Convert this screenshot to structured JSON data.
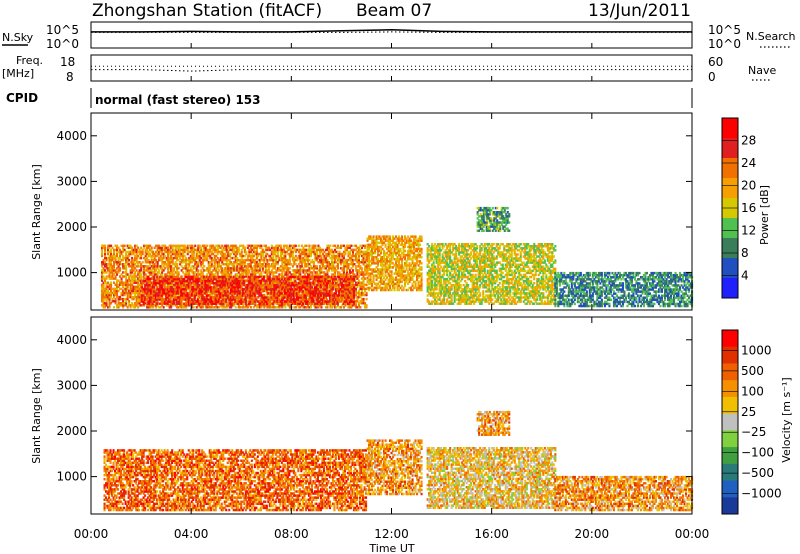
{
  "header": {
    "station": "Zhongshan Station (fitACF)",
    "beam": "Beam 07",
    "date": "13/Jun/2011"
  },
  "side_labels": {
    "nsky": "N.Sky",
    "freq": "Freq.",
    "freq_unit": "[MHz]",
    "cpid": "CPID",
    "nsearch": "N.Search",
    "nave": "Nave",
    "cpid_value": "normal (fast stereo) 153"
  },
  "small_panel_ticks": {
    "noise_left": [
      "10^5",
      "10^0"
    ],
    "noise_right": [
      "10^5",
      "10^0"
    ],
    "freq_left": [
      "18",
      "8"
    ],
    "nave_right": [
      "60",
      "0"
    ]
  },
  "chart_data": [
    {
      "type": "line",
      "title": "",
      "series": [
        {
          "name": "N.Sky",
          "values": [
            3.1,
            3.1,
            3.2,
            3.1,
            3.1,
            3.3,
            3.5,
            3.2,
            3.1,
            3.1,
            3.1,
            3.1
          ]
        },
        {
          "name": "N.Search",
          "values": [
            3.0,
            3.0,
            3.0,
            3.0,
            3.0,
            3.0,
            3.1,
            3.0,
            3.0,
            3.0,
            3.0,
            3.0
          ]
        }
      ],
      "x": [
        "00:00",
        "02:00",
        "04:00",
        "06:00",
        "08:00",
        "10:00",
        "12:00",
        "14:00",
        "16:00",
        "18:00",
        "20:00",
        "22:00"
      ],
      "ylim_labels": [
        "10^0",
        "10^5"
      ]
    },
    {
      "type": "line",
      "title": "",
      "series": [
        {
          "name": "Freq.",
          "values": [
            12.4,
            12.4,
            11.8,
            12.4,
            12.4,
            12.4,
            12.4,
            12.4,
            12.4,
            12.4,
            12.4,
            12.4
          ]
        },
        {
          "name": "Nave",
          "values": [
            34,
            34,
            34,
            34,
            34,
            34,
            34,
            34,
            34,
            34,
            34,
            34
          ]
        }
      ],
      "x": [
        "00:00",
        "02:00",
        "04:00",
        "06:00",
        "08:00",
        "10:00",
        "12:00",
        "14:00",
        "16:00",
        "18:00",
        "20:00",
        "22:00"
      ],
      "ylim": [
        8,
        18
      ],
      "ylim_right": [
        0,
        60
      ]
    },
    {
      "type": "heatmap",
      "ylabel": "Slant Range [km]",
      "yticks": [
        "1000",
        "2000",
        "3000",
        "4000"
      ],
      "ylim": [
        180,
        4500
      ],
      "colorbar_label": "Power [dB]",
      "colorbar_ticks": [
        "4",
        "8",
        "12",
        "16",
        "20",
        "24",
        "28"
      ],
      "colorbar_colors": [
        "#2020ff",
        "#2050c0",
        "#3a7d5a",
        "#50c050",
        "#d6c800",
        "#f5a000",
        "#f07000",
        "#e02020",
        "#ff0000"
      ],
      "regions": [
        {
          "start": 0.4,
          "end": 11.0,
          "min_km": 220,
          "max_km": 1600,
          "value": 22
        },
        {
          "start": 2.0,
          "end": 10.5,
          "min_km": 300,
          "max_km": 900,
          "value": 28
        },
        {
          "start": 11.0,
          "end": 13.2,
          "min_km": 600,
          "max_km": 1800,
          "value": 20
        },
        {
          "start": 13.4,
          "end": 18.5,
          "min_km": 300,
          "max_km": 1650,
          "value": 16
        },
        {
          "start": 15.4,
          "end": 16.7,
          "min_km": 1900,
          "max_km": 2400,
          "value": 10
        },
        {
          "start": 18.5,
          "end": 24.0,
          "min_km": 250,
          "max_km": 1000,
          "value": 8
        }
      ]
    },
    {
      "type": "heatmap",
      "ylabel": "Slant Range [km]",
      "yticks": [
        "1000",
        "2000",
        "3000",
        "4000"
      ],
      "ylim": [
        180,
        4500
      ],
      "colorbar_label": "Velocity [m s⁻¹]",
      "colorbar_ticks": [
        "1000",
        "500",
        "100",
        "25",
        "−25",
        "−100",
        "−500",
        "−1000"
      ],
      "colorbar_colors": [
        "#1a3a9a",
        "#2060c0",
        "#2a7a7a",
        "#40a040",
        "#80d040",
        "#c0c0c0",
        "#f0c000",
        "#f59000",
        "#f06000",
        "#e03000",
        "#ff0000"
      ],
      "regions": [
        {
          "start": 0.5,
          "end": 11.0,
          "min_km": 250,
          "max_km": 1600,
          "value": -300
        },
        {
          "start": 11.0,
          "end": 13.2,
          "min_km": 600,
          "max_km": 1800,
          "value": -150
        },
        {
          "start": 13.4,
          "end": 18.5,
          "min_km": 300,
          "max_km": 1650,
          "value": -60
        },
        {
          "start": 15.4,
          "end": 16.7,
          "min_km": 1900,
          "max_km": 2400,
          "value": -150
        },
        {
          "start": 18.5,
          "end": 24.0,
          "min_km": 250,
          "max_km": 1000,
          "value": -100
        }
      ]
    }
  ],
  "xaxis": {
    "label": "Time UT",
    "ticks": [
      "00:00",
      "04:00",
      "08:00",
      "12:00",
      "16:00",
      "20:00",
      "00:00"
    ]
  }
}
